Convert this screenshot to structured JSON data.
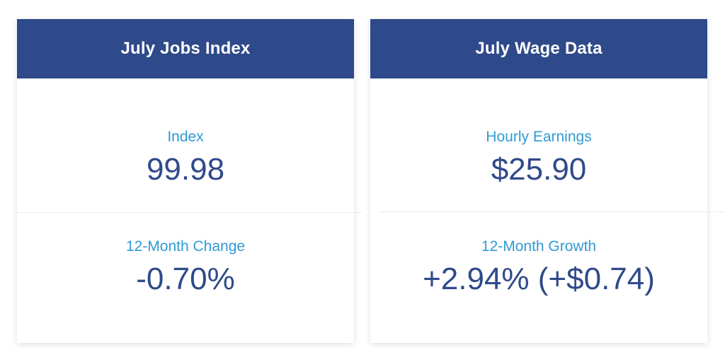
{
  "jobs_card": {
    "title": "July Jobs Index",
    "index_label": "Index",
    "index_value": "99.98",
    "change_label": "12-Month Change",
    "change_value": "-0.70%"
  },
  "wage_card": {
    "title": "July Wage Data",
    "earnings_label": "Hourly Earnings",
    "earnings_value": "$25.90",
    "growth_label": "12-Month Growth",
    "growth_value": "+2.94% (+$0.74)"
  },
  "colors": {
    "header_bg": "#2f4a8a",
    "header_text": "#ffffff",
    "label": "#2f9bd6",
    "value": "#2f4a8a"
  }
}
